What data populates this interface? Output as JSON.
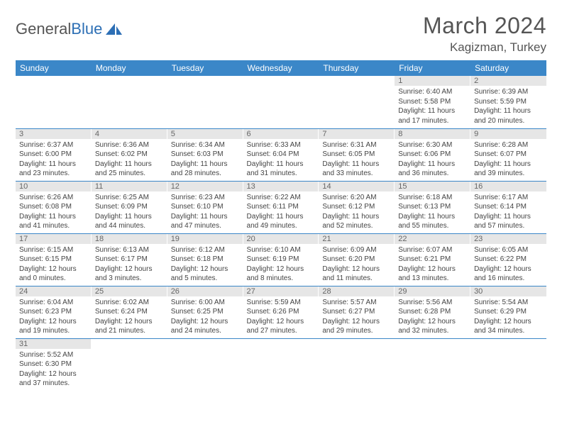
{
  "brand": {
    "part1": "General",
    "part2": "Blue"
  },
  "title": "March 2024",
  "location": "Kagizman, Turkey",
  "colors": {
    "header_bg": "#3b87c8",
    "header_text": "#ffffff",
    "daynum_bg": "#e6e6e6",
    "row_border": "#3b87c8",
    "logo_blue": "#2d6fb5",
    "text": "#444444"
  },
  "days": [
    "Sunday",
    "Monday",
    "Tuesday",
    "Wednesday",
    "Thursday",
    "Friday",
    "Saturday"
  ],
  "weeks": [
    [
      null,
      null,
      null,
      null,
      null,
      {
        "n": "1",
        "sr": "6:40 AM",
        "ss": "5:58 PM",
        "dl": "11 hours and 17 minutes."
      },
      {
        "n": "2",
        "sr": "6:39 AM",
        "ss": "5:59 PM",
        "dl": "11 hours and 20 minutes."
      }
    ],
    [
      {
        "n": "3",
        "sr": "6:37 AM",
        "ss": "6:00 PM",
        "dl": "11 hours and 23 minutes."
      },
      {
        "n": "4",
        "sr": "6:36 AM",
        "ss": "6:02 PM",
        "dl": "11 hours and 25 minutes."
      },
      {
        "n": "5",
        "sr": "6:34 AM",
        "ss": "6:03 PM",
        "dl": "11 hours and 28 minutes."
      },
      {
        "n": "6",
        "sr": "6:33 AM",
        "ss": "6:04 PM",
        "dl": "11 hours and 31 minutes."
      },
      {
        "n": "7",
        "sr": "6:31 AM",
        "ss": "6:05 PM",
        "dl": "11 hours and 33 minutes."
      },
      {
        "n": "8",
        "sr": "6:30 AM",
        "ss": "6:06 PM",
        "dl": "11 hours and 36 minutes."
      },
      {
        "n": "9",
        "sr": "6:28 AM",
        "ss": "6:07 PM",
        "dl": "11 hours and 39 minutes."
      }
    ],
    [
      {
        "n": "10",
        "sr": "6:26 AM",
        "ss": "6:08 PM",
        "dl": "11 hours and 41 minutes."
      },
      {
        "n": "11",
        "sr": "6:25 AM",
        "ss": "6:09 PM",
        "dl": "11 hours and 44 minutes."
      },
      {
        "n": "12",
        "sr": "6:23 AM",
        "ss": "6:10 PM",
        "dl": "11 hours and 47 minutes."
      },
      {
        "n": "13",
        "sr": "6:22 AM",
        "ss": "6:11 PM",
        "dl": "11 hours and 49 minutes."
      },
      {
        "n": "14",
        "sr": "6:20 AM",
        "ss": "6:12 PM",
        "dl": "11 hours and 52 minutes."
      },
      {
        "n": "15",
        "sr": "6:18 AM",
        "ss": "6:13 PM",
        "dl": "11 hours and 55 minutes."
      },
      {
        "n": "16",
        "sr": "6:17 AM",
        "ss": "6:14 PM",
        "dl": "11 hours and 57 minutes."
      }
    ],
    [
      {
        "n": "17",
        "sr": "6:15 AM",
        "ss": "6:15 PM",
        "dl": "12 hours and 0 minutes."
      },
      {
        "n": "18",
        "sr": "6:13 AM",
        "ss": "6:17 PM",
        "dl": "12 hours and 3 minutes."
      },
      {
        "n": "19",
        "sr": "6:12 AM",
        "ss": "6:18 PM",
        "dl": "12 hours and 5 minutes."
      },
      {
        "n": "20",
        "sr": "6:10 AM",
        "ss": "6:19 PM",
        "dl": "12 hours and 8 minutes."
      },
      {
        "n": "21",
        "sr": "6:09 AM",
        "ss": "6:20 PM",
        "dl": "12 hours and 11 minutes."
      },
      {
        "n": "22",
        "sr": "6:07 AM",
        "ss": "6:21 PM",
        "dl": "12 hours and 13 minutes."
      },
      {
        "n": "23",
        "sr": "6:05 AM",
        "ss": "6:22 PM",
        "dl": "12 hours and 16 minutes."
      }
    ],
    [
      {
        "n": "24",
        "sr": "6:04 AM",
        "ss": "6:23 PM",
        "dl": "12 hours and 19 minutes."
      },
      {
        "n": "25",
        "sr": "6:02 AM",
        "ss": "6:24 PM",
        "dl": "12 hours and 21 minutes."
      },
      {
        "n": "26",
        "sr": "6:00 AM",
        "ss": "6:25 PM",
        "dl": "12 hours and 24 minutes."
      },
      {
        "n": "27",
        "sr": "5:59 AM",
        "ss": "6:26 PM",
        "dl": "12 hours and 27 minutes."
      },
      {
        "n": "28",
        "sr": "5:57 AM",
        "ss": "6:27 PM",
        "dl": "12 hours and 29 minutes."
      },
      {
        "n": "29",
        "sr": "5:56 AM",
        "ss": "6:28 PM",
        "dl": "12 hours and 32 minutes."
      },
      {
        "n": "30",
        "sr": "5:54 AM",
        "ss": "6:29 PM",
        "dl": "12 hours and 34 minutes."
      }
    ],
    [
      {
        "n": "31",
        "sr": "5:52 AM",
        "ss": "6:30 PM",
        "dl": "12 hours and 37 minutes."
      },
      null,
      null,
      null,
      null,
      null,
      null
    ]
  ],
  "labels": {
    "sunrise": "Sunrise:",
    "sunset": "Sunset:",
    "daylight": "Daylight:"
  }
}
